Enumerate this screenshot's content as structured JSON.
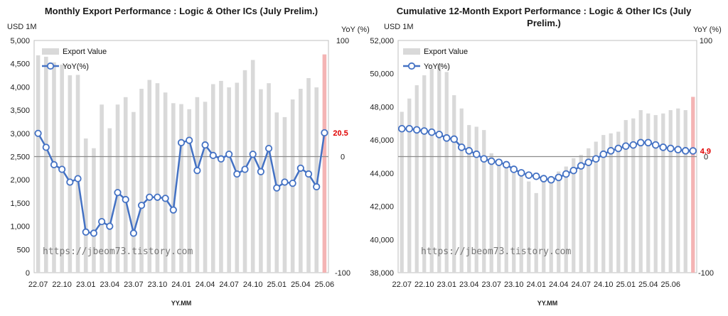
{
  "watermark": "https://jbeom73.tistory.com",
  "chart_data": [
    {
      "type": "bar",
      "title": "Monthly Export Performance : Logic & Other ICs (July Prelim.)",
      "ylabel": "USD 1M",
      "y2label": "YoY (%)",
      "xlabel": "YY.MM",
      "ylim": [
        0,
        5000
      ],
      "y2lim": [
        -100,
        100
      ],
      "y_ticks": [
        "0",
        "500",
        "1,000",
        "1,500",
        "2,000",
        "2,500",
        "3,000",
        "3,500",
        "4,000",
        "4,500",
        "5,000"
      ],
      "y2_ticks": [
        "100",
        "0",
        "-100"
      ],
      "x_ticks": [
        "22.07",
        "22.10",
        "23.01",
        "23.04",
        "23.07",
        "23.10",
        "24.01",
        "24.04",
        "24.07",
        "24.10",
        "25.01",
        "25.04",
        "25.06"
      ],
      "legend": "top-left",
      "legend_items": [
        "Export Value",
        "YoY(%)"
      ],
      "last_label": "20.5",
      "bar_color": "#d9d9d9",
      "last_bar_color": "#f4b4b4",
      "line_color": "#4472c4",
      "series": [
        {
          "name": "Export Value",
          "kind": "bar",
          "values": [
            4680,
            4650,
            4530,
            4480,
            4250,
            4260,
            2890,
            2680,
            3620,
            3110,
            3620,
            3780,
            3460,
            3960,
            4150,
            4080,
            3880,
            3650,
            3630,
            3520,
            3780,
            3680,
            4060,
            4130,
            3990,
            4090,
            4360,
            4580,
            3950,
            4080,
            3450,
            3350,
            3730,
            3960,
            4190,
            3990,
            4700
          ]
        },
        {
          "name": "YoY(%)",
          "kind": "line",
          "values": [
            20,
            8,
            -7,
            -11,
            -22,
            -19,
            -65,
            -66,
            -56,
            -60,
            -31,
            -37,
            -66,
            -42,
            -35,
            -35,
            -36,
            -46,
            12,
            14,
            -12,
            10,
            1,
            -2,
            2,
            -15,
            -11,
            2,
            -13,
            7,
            -27,
            -22,
            -23,
            -10,
            -15,
            -26,
            20.5
          ]
        }
      ]
    },
    {
      "type": "bar",
      "title": "Cumulative 12-Month Export Performance : Logic & Other ICs (July Prelim.)",
      "ylabel": "USD 1M",
      "y2label": "YoY (%)",
      "xlabel": "YY.MM",
      "ylim": [
        38000,
        52000
      ],
      "y2lim": [
        -100,
        100
      ],
      "y_ticks": [
        "38,000",
        "40,000",
        "42,000",
        "44,000",
        "46,000",
        "48,000",
        "50,000",
        "52,000"
      ],
      "y2_ticks": [
        "100",
        "0",
        "-100"
      ],
      "x_ticks": [
        "22.07",
        "22.10",
        "23.01",
        "23.04",
        "23.07",
        "23.10",
        "24.01",
        "24.04",
        "24.07",
        "24.10",
        "25.01",
        "25.04",
        "25.06"
      ],
      "legend": "top-left",
      "legend_items": [
        "Export Value",
        "YoY(%)"
      ],
      "last_label": "4.9",
      "bar_color": "#d9d9d9",
      "last_bar_color": "#f4b4b4",
      "line_color": "#4472c4",
      "series": [
        {
          "name": "Export Value",
          "kind": "bar",
          "values": [
            47700,
            48500,
            49300,
            49900,
            50300,
            50600,
            50100,
            48700,
            47900,
            46900,
            46800,
            46600,
            45200,
            44600,
            44300,
            44000,
            43800,
            43500,
            42800,
            43500,
            43700,
            44100,
            44400,
            44900,
            45100,
            45500,
            45900,
            46300,
            46400,
            46500,
            47200,
            47300,
            47800,
            47600,
            47500,
            47600,
            47800,
            47900,
            47800,
            48600
          ]
        },
        {
          "name": "YoY(%)",
          "kind": "line",
          "values": [
            24,
            24,
            23,
            22,
            21,
            19,
            16,
            15,
            8,
            5,
            2,
            -2,
            -4,
            -5,
            -7,
            -11,
            -14,
            -16,
            -17,
            -19,
            -20,
            -18,
            -15,
            -12,
            -8,
            -5,
            -2,
            2,
            5,
            7,
            9,
            10,
            12,
            12,
            10,
            8,
            7,
            6,
            5,
            4.9
          ]
        }
      ]
    }
  ]
}
